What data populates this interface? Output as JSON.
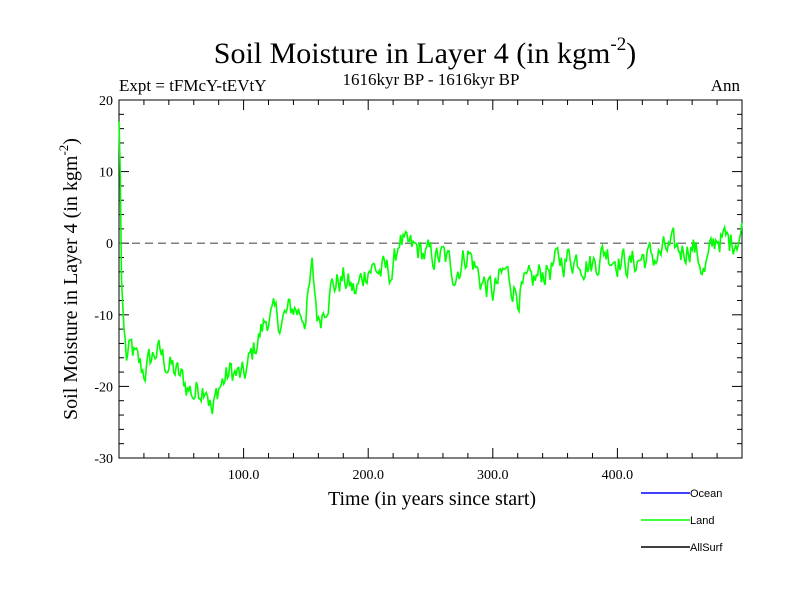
{
  "chart_data": {
    "type": "line",
    "title": "Soil Moisture in Layer 4 (in kgm",
    "title_superscript": "-2",
    "title_close": ")",
    "subtitle_left": "Expt = tFMcY-tEVtY",
    "subtitle_center": "1616kyr BP - 1616kyr BP",
    "subtitle_right": "Ann",
    "xlabel": "Time (in years since start)",
    "ylabel": "Soil Moisture in Layer 4 (in kgm",
    "ylabel_superscript": "-2",
    "ylabel_close": ")",
    "xlim": [
      0,
      500
    ],
    "ylim": [
      -30,
      20
    ],
    "xticks": [
      100,
      200,
      300,
      400
    ],
    "xtick_labels": [
      "100.0",
      "200.0",
      "300.0",
      "400.0"
    ],
    "yticks": [
      -30,
      -20,
      -10,
      0,
      10,
      20
    ],
    "ytick_labels": [
      "-30",
      "-20",
      "-10",
      "0",
      "10",
      "20"
    ],
    "reference_line": 0,
    "legend": [
      {
        "name": "Ocean",
        "color": "#0000ff"
      },
      {
        "name": "Land",
        "color": "#00ff00"
      },
      {
        "name": "AllSurf",
        "color": "#000000"
      }
    ],
    "series": [
      {
        "name": "Land",
        "color": "#00ff00",
        "x": [
          0,
          1,
          2,
          4,
          6,
          10,
          15,
          20,
          30,
          40,
          50,
          60,
          70,
          75,
          80,
          90,
          100,
          110,
          120,
          130,
          140,
          150,
          155,
          160,
          170,
          180,
          190,
          200,
          210,
          220,
          225,
          230,
          240,
          250,
          260,
          270,
          280,
          290,
          300,
          310,
          320,
          330,
          340,
          350,
          360,
          370,
          380,
          390,
          400,
          410,
          420,
          430,
          440,
          450,
          460,
          470,
          480,
          490,
          500
        ],
        "values": [
          17,
          10,
          -5,
          -12,
          -16,
          -15,
          -17,
          -18,
          -15,
          -17,
          -19,
          -21,
          -19,
          -24,
          -20,
          -18,
          -19,
          -14,
          -10,
          -11,
          -9,
          -10,
          -4,
          -11,
          -6,
          -5,
          -7,
          -3,
          -4,
          -4,
          1,
          -1,
          -1,
          -2,
          -2,
          -4,
          -1,
          -5,
          -7,
          -4,
          -7,
          -6,
          -4,
          -3,
          -2,
          -2,
          -3,
          -1,
          -2,
          -3,
          -2,
          -2,
          -1,
          -1,
          0,
          -4,
          1,
          0,
          2
        ]
      }
    ]
  }
}
